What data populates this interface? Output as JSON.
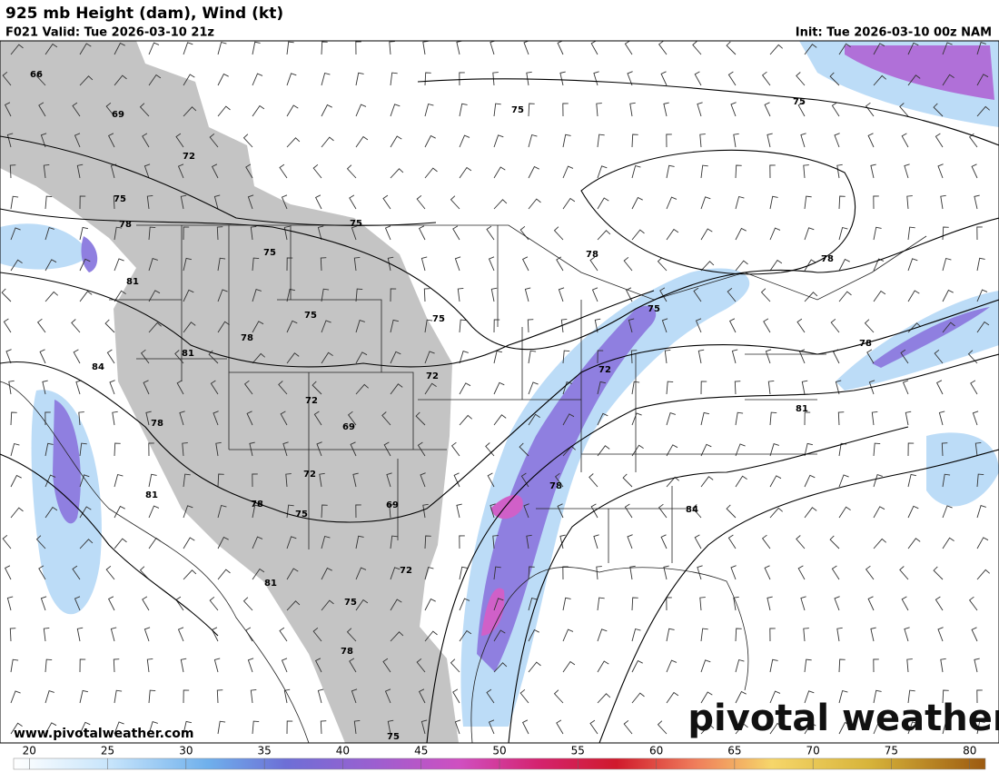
{
  "header": {
    "title": "925 mb Height (dam), Wind (kt)",
    "valid": "F021 Valid: Tue 2026-03-10 21z",
    "init": "Init: Tue 2026-03-10 00z NAM"
  },
  "map": {
    "contour_labels": [
      66,
      69,
      72,
      75,
      78,
      75,
      75,
      75,
      75,
      81,
      78,
      78,
      75,
      75,
      75,
      78,
      81,
      84,
      72,
      72,
      78,
      72,
      69,
      81,
      78,
      72,
      81,
      78,
      75,
      69,
      78,
      84,
      81,
      72,
      75,
      78,
      75
    ]
  },
  "footer": {
    "website": "www.pivotalweather.com",
    "logo": "pivotal weather"
  },
  "colorbar": {
    "range": [
      19,
      81
    ],
    "ticks": [
      20,
      25,
      30,
      35,
      40,
      45,
      50,
      55,
      60,
      65,
      70,
      75,
      80
    ]
  }
}
